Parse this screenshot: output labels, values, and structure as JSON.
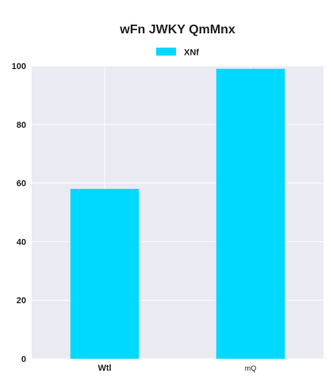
{
  "chart_data": {
    "type": "bar",
    "title": "wFn JWKY QmMnx",
    "categories": [
      "Wtl",
      "mQ"
    ],
    "series": [
      {
        "name": "XNf",
        "values": [
          58,
          99
        ],
        "color": "#00d9ff"
      }
    ],
    "ylim": [
      0,
      100
    ],
    "yticks": [
      0,
      20,
      40,
      60,
      80,
      100
    ],
    "xlabel": "",
    "ylabel": "",
    "grid": true,
    "legend": "top-center",
    "plot_background": "#eaeaf2"
  }
}
